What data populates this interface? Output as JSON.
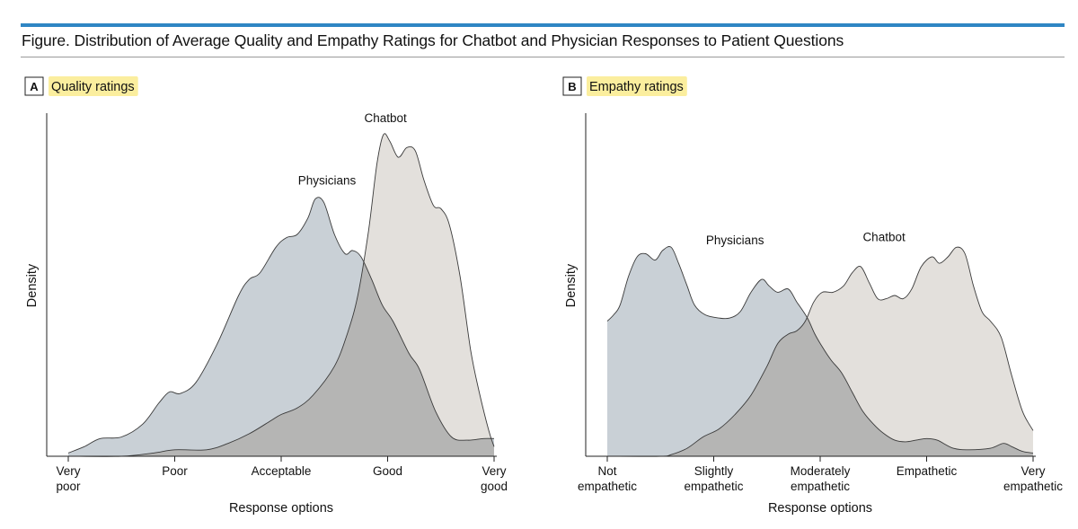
{
  "figure_title": "Figure. Distribution of Average Quality and Empathy Ratings for Chatbot and Physician Responses to Patient Questions",
  "colors": {
    "accent_rule": "#2f86c4",
    "highlight": "#fbee9e",
    "physicians_fill": "#c9d0d6",
    "chatbot_fill": "#e3e0dc",
    "overlap_fill": "#b5b5b4",
    "line": "#3a3a3a"
  },
  "chart_data": [
    {
      "type": "area",
      "panel_letter": "A",
      "title": "Quality ratings",
      "xlabel": "Response options",
      "ylabel": "Density",
      "xlim": [
        1,
        5
      ],
      "ylim": [
        0,
        1
      ],
      "x_ticks": [
        1,
        2,
        3,
        4,
        5
      ],
      "x_tick_labels": [
        [
          "Very",
          "poor"
        ],
        [
          "Poor"
        ],
        [
          "Acceptable"
        ],
        [
          "Good"
        ],
        [
          "Very",
          "good"
        ]
      ],
      "series": [
        {
          "name": "Physicians",
          "x": [
            1.0,
            1.15,
            1.3,
            1.5,
            1.7,
            1.85,
            1.95,
            2.05,
            2.2,
            2.4,
            2.6,
            2.7,
            2.8,
            2.95,
            3.05,
            3.15,
            3.25,
            3.32,
            3.4,
            3.5,
            3.6,
            3.67,
            3.75,
            3.85,
            3.95,
            4.05,
            4.2,
            4.3,
            4.45,
            4.6,
            4.75,
            4.9,
            5.0
          ],
          "values": [
            0.01,
            0.03,
            0.055,
            0.06,
            0.1,
            0.165,
            0.2,
            0.195,
            0.23,
            0.35,
            0.5,
            0.55,
            0.57,
            0.65,
            0.68,
            0.69,
            0.74,
            0.8,
            0.79,
            0.69,
            0.63,
            0.64,
            0.62,
            0.55,
            0.47,
            0.42,
            0.32,
            0.27,
            0.14,
            0.06,
            0.05,
            0.055,
            0.055
          ]
        },
        {
          "name": "Chatbot",
          "x": [
            1.0,
            1.5,
            1.8,
            2.0,
            2.3,
            2.5,
            2.7,
            2.9,
            3.0,
            3.15,
            3.3,
            3.5,
            3.62,
            3.72,
            3.82,
            3.9,
            3.96,
            4.02,
            4.1,
            4.18,
            4.26,
            4.34,
            4.43,
            4.5,
            4.58,
            4.68,
            4.78,
            4.86,
            4.95,
            5.0
          ],
          "values": [
            0.0,
            0.0,
            0.01,
            0.02,
            0.02,
            0.04,
            0.07,
            0.11,
            0.13,
            0.15,
            0.19,
            0.28,
            0.38,
            0.5,
            0.7,
            0.91,
            1.0,
            0.98,
            0.93,
            0.96,
            0.95,
            0.86,
            0.78,
            0.77,
            0.72,
            0.56,
            0.33,
            0.2,
            0.08,
            0.03
          ]
        }
      ],
      "labels": [
        {
          "text": "Physicians",
          "x": 3.43,
          "y": 0.8
        },
        {
          "text": "Chatbot",
          "x": 3.98,
          "y": 1.0
        }
      ]
    },
    {
      "type": "area",
      "panel_letter": "B",
      "title": "Empathy ratings",
      "xlabel": "Response options",
      "ylabel": "Density",
      "xlim": [
        1,
        5
      ],
      "ylim": [
        0,
        1
      ],
      "x_ticks": [
        1,
        2,
        3,
        4,
        5
      ],
      "x_tick_labels": [
        [
          "Not",
          "empathetic"
        ],
        [
          "Slightly",
          "empathetic"
        ],
        [
          "Moderately",
          "empathetic"
        ],
        [
          "Empathetic"
        ],
        [
          "Very",
          "empathetic"
        ]
      ],
      "series": [
        {
          "name": "Physicians",
          "x": [
            1.0,
            1.06,
            1.12,
            1.2,
            1.28,
            1.36,
            1.45,
            1.52,
            1.6,
            1.67,
            1.75,
            1.82,
            1.92,
            2.05,
            2.15,
            2.25,
            2.35,
            2.45,
            2.52,
            2.6,
            2.7,
            2.78,
            2.88,
            2.95,
            3.02,
            3.1,
            3.2,
            3.3,
            3.4,
            3.5,
            3.6,
            3.7,
            3.8,
            3.9,
            4.0,
            4.1,
            4.25,
            4.4,
            4.6,
            4.72,
            4.8,
            4.9,
            5.0
          ],
          "values": [
            0.42,
            0.44,
            0.47,
            0.56,
            0.62,
            0.63,
            0.61,
            0.64,
            0.65,
            0.6,
            0.53,
            0.47,
            0.44,
            0.43,
            0.43,
            0.45,
            0.51,
            0.55,
            0.53,
            0.51,
            0.52,
            0.48,
            0.43,
            0.38,
            0.34,
            0.3,
            0.26,
            0.2,
            0.14,
            0.1,
            0.07,
            0.05,
            0.045,
            0.05,
            0.055,
            0.05,
            0.025,
            0.02,
            0.025,
            0.04,
            0.03,
            0.015,
            0.01
          ]
        },
        {
          "name": "Chatbot",
          "x": [
            1.0,
            1.5,
            1.6,
            1.75,
            1.9,
            2.05,
            2.2,
            2.35,
            2.5,
            2.6,
            2.7,
            2.78,
            2.86,
            2.94,
            3.02,
            3.12,
            3.22,
            3.3,
            3.38,
            3.46,
            3.54,
            3.62,
            3.7,
            3.78,
            3.86,
            3.95,
            4.05,
            4.12,
            4.2,
            4.28,
            4.36,
            4.44,
            4.52,
            4.6,
            4.7,
            4.8,
            4.9,
            5.0
          ],
          "values": [
            0.0,
            0.0,
            0.005,
            0.025,
            0.06,
            0.085,
            0.13,
            0.19,
            0.28,
            0.35,
            0.38,
            0.39,
            0.42,
            0.48,
            0.51,
            0.51,
            0.53,
            0.57,
            0.59,
            0.54,
            0.49,
            0.49,
            0.5,
            0.49,
            0.52,
            0.59,
            0.62,
            0.6,
            0.62,
            0.65,
            0.63,
            0.53,
            0.45,
            0.42,
            0.37,
            0.25,
            0.14,
            0.08
          ]
        }
      ],
      "labels": [
        {
          "text": "Physicians",
          "x": 2.2,
          "y": 0.62
        },
        {
          "text": "Chatbot",
          "x": 3.6,
          "y": 0.63
        }
      ]
    }
  ]
}
